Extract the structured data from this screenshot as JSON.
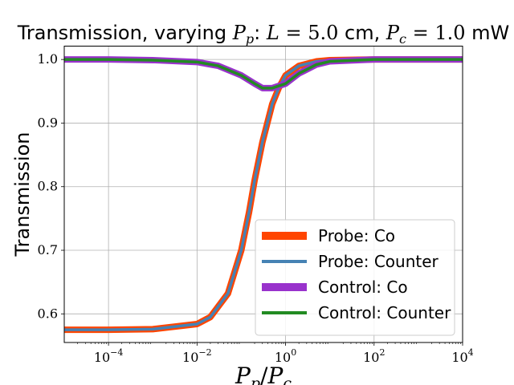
{
  "chart_data": {
    "type": "line",
    "title": {
      "prefix": "Transmission, varying ",
      "var1": "P",
      "var1_sub": "p",
      "mid1": ": ",
      "var2": "L",
      "eq1": " = 5.0",
      "unit1": " cm, ",
      "var3": "P",
      "var3_sub": "c",
      "eq2": " = 1.0",
      "unit2": " mW"
    },
    "xlabel": {
      "num": "P",
      "num_sub": "p",
      "slash": "/",
      "den": "P",
      "den_sub": "c"
    },
    "ylabel": "Transmission",
    "x_scale": "log",
    "xlim": [
      1e-05,
      10000.0
    ],
    "ylim": [
      0.555,
      1.021
    ],
    "x_ticks": [
      {
        "value": 0.0001,
        "base": "10",
        "exp": "−4"
      },
      {
        "value": 0.01,
        "base": "10",
        "exp": "−2"
      },
      {
        "value": 1,
        "base": "10",
        "exp": "0"
      },
      {
        "value": 100,
        "base": "10",
        "exp": "2"
      },
      {
        "value": 10000,
        "base": "10",
        "exp": "4"
      }
    ],
    "y_ticks": [
      {
        "value": 0.6,
        "label": "0.6"
      },
      {
        "value": 0.7,
        "label": "0.7"
      },
      {
        "value": 0.8,
        "label": "0.8"
      },
      {
        "value": 0.9,
        "label": "0.9"
      },
      {
        "value": 1.0,
        "label": "1.0"
      }
    ],
    "grid": true,
    "legend_position": "lower-right",
    "series": [
      {
        "name": "Probe: Co",
        "color": "#ff4500",
        "style": "thick",
        "x": [
          1e-05,
          0.0001,
          0.001,
          0.01,
          0.02,
          0.05,
          0.1,
          0.15,
          0.2,
          0.3,
          0.5,
          0.7,
          1,
          2,
          5,
          10,
          100,
          1000,
          10000
        ],
        "y": [
          0.575,
          0.575,
          0.576,
          0.584,
          0.595,
          0.632,
          0.7,
          0.76,
          0.81,
          0.87,
          0.93,
          0.955,
          0.975,
          0.99,
          0.997,
          0.999,
          1.0,
          1.0,
          1.0
        ]
      },
      {
        "name": "Probe: Counter",
        "color": "#4682b4",
        "style": "thin",
        "x": [
          1e-05,
          0.0001,
          0.001,
          0.01,
          0.02,
          0.05,
          0.1,
          0.15,
          0.2,
          0.3,
          0.5,
          0.7,
          1,
          2,
          5,
          10,
          100,
          1000,
          10000
        ],
        "y": [
          0.575,
          0.575,
          0.576,
          0.584,
          0.595,
          0.632,
          0.7,
          0.76,
          0.81,
          0.87,
          0.93,
          0.955,
          0.975,
          0.99,
          0.997,
          0.999,
          1.0,
          1.0,
          1.0
        ]
      },
      {
        "name": "Control: Co",
        "color": "#9932cc",
        "style": "thick",
        "x": [
          1e-05,
          0.0001,
          0.001,
          0.01,
          0.03,
          0.1,
          0.2,
          0.3,
          0.5,
          1,
          2,
          5,
          10,
          100,
          1000,
          10000
        ],
        "y": [
          1.0,
          1.0,
          0.999,
          0.996,
          0.99,
          0.975,
          0.962,
          0.955,
          0.955,
          0.962,
          0.978,
          0.992,
          0.997,
          1.0,
          1.0,
          1.0
        ]
      },
      {
        "name": "Control: Counter",
        "color": "#228b22",
        "style": "thin",
        "x": [
          1e-05,
          0.0001,
          0.001,
          0.01,
          0.03,
          0.1,
          0.2,
          0.3,
          0.5,
          1,
          2,
          5,
          10,
          100,
          1000,
          10000
        ],
        "y": [
          1.0,
          1.0,
          0.999,
          0.996,
          0.99,
          0.975,
          0.962,
          0.955,
          0.955,
          0.962,
          0.978,
          0.992,
          0.997,
          1.0,
          1.0,
          1.0
        ]
      }
    ]
  }
}
